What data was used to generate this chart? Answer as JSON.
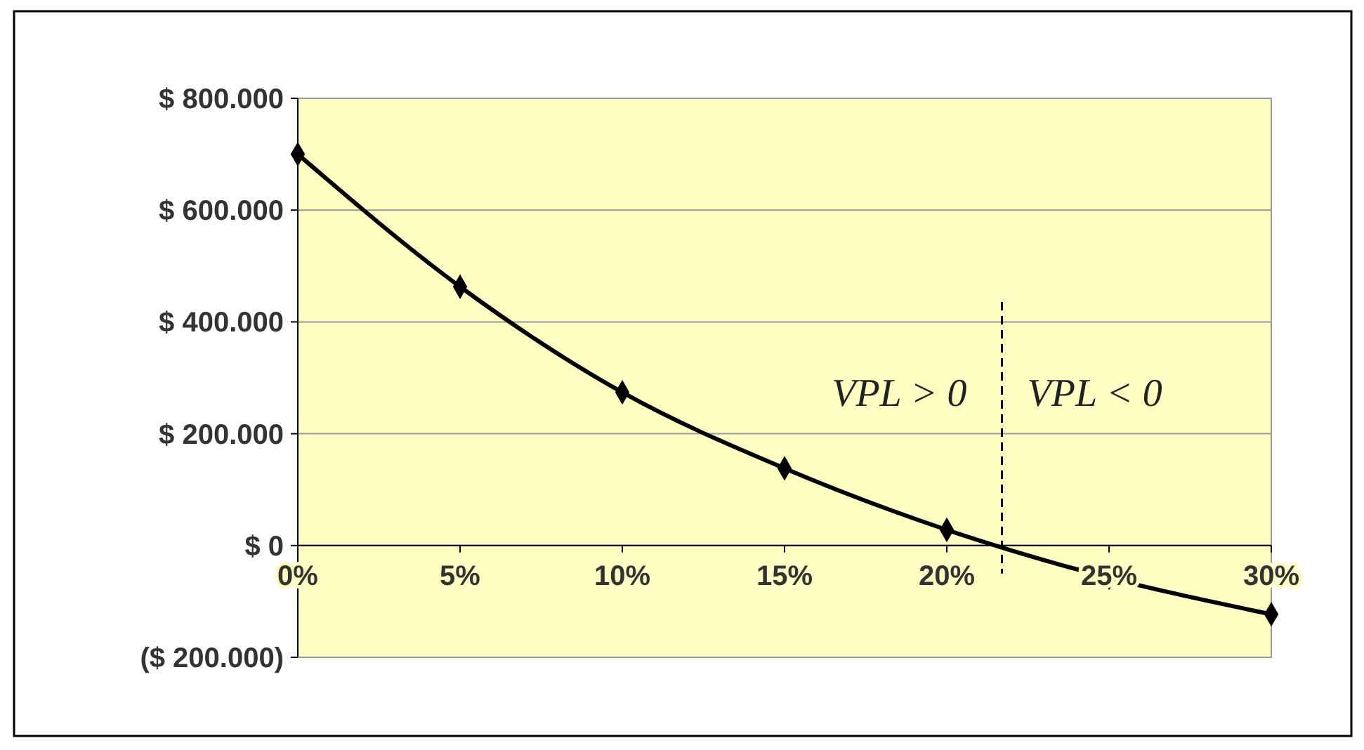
{
  "chart_data": {
    "type": "line",
    "x": [
      0,
      5,
      10,
      15,
      20,
      25,
      30
    ],
    "series": [
      {
        "color": "#000000",
        "values": [
          700000,
          463000,
          274000,
          138000,
          28000,
          -58000,
          -123000
        ]
      }
    ],
    "xlim": [
      0,
      30
    ],
    "xticks": [
      {
        "value": 0,
        "label": "0%"
      },
      {
        "value": 5,
        "label": "5%"
      },
      {
        "value": 10,
        "label": "10%"
      },
      {
        "value": 15,
        "label": "15%"
      },
      {
        "value": 20,
        "label": "20%"
      },
      {
        "value": 25,
        "label": "25%"
      },
      {
        "value": 30,
        "label": "30%"
      }
    ],
    "ylim": [
      -200000,
      800000
    ],
    "yticks": [
      {
        "value": -200000,
        "label": "($ 200.000)"
      },
      {
        "value": 0,
        "label": "$ 0"
      },
      {
        "value": 200000,
        "label": "$ 200.000"
      },
      {
        "value": 400000,
        "label": "$ 400.000"
      },
      {
        "value": 600000,
        "label": "$ 600.000"
      },
      {
        "value": 800000,
        "label": "$ 800.000"
      }
    ],
    "grid": "y",
    "marker": "diamond",
    "line_style": "solid",
    "ref_lines": [
      {
        "axis": "x",
        "value": 21.7,
        "line_style": "dashed",
        "color": "#000000"
      }
    ],
    "annotations": [
      "VPL > 0",
      "VPL < 0"
    ]
  }
}
